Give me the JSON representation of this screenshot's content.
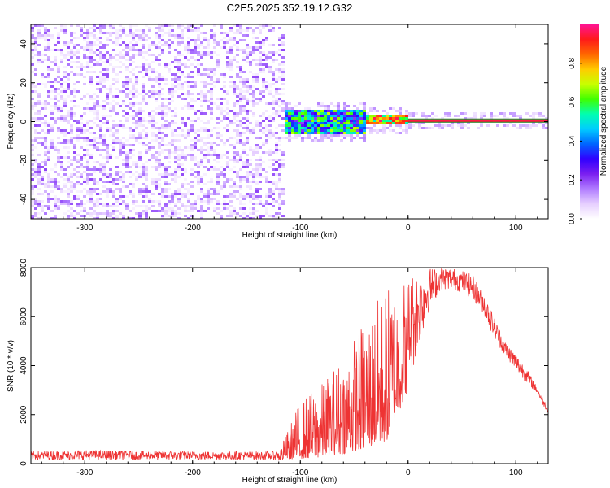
{
  "chart_data": [
    {
      "type": "heatmap",
      "title": "C2E5.2025.352.19.12.G32",
      "xlabel": "Height of straight line (km)",
      "ylabel": "Frequency (Hz)",
      "xlim": [
        -350,
        130
      ],
      "ylim": [
        -50,
        50
      ],
      "x_ticks": [
        "-300",
        "-200",
        "-100",
        "0",
        "100"
      ],
      "y_ticks": [
        "-40",
        "-20",
        "0",
        "20",
        "40"
      ],
      "colorbar": {
        "label": "Normalized spectral amplitude",
        "range": [
          0,
          1
        ],
        "ticks": [
          "0.0",
          "0.2",
          "0.4",
          "0.6",
          "0.8"
        ],
        "colormap": [
          "#ffffff",
          "#e6cfff",
          "#b07cff",
          "#7a1ef0",
          "#3000ff",
          "#0066ff",
          "#00ccff",
          "#00ffb0",
          "#40ff00",
          "#c8ff00",
          "#ffcc00",
          "#ff6600",
          "#ff1a1a",
          "#ff1493"
        ]
      },
      "regions": [
        {
          "x_range": [
            -350,
            -115
          ],
          "freq_range": [
            -50,
            50
          ],
          "amplitude_range": [
            0.0,
            0.2
          ],
          "character": "broadband noise"
        },
        {
          "x_range": [
            -115,
            -40
          ],
          "freq_range": [
            -6,
            6
          ],
          "amplitude_range": [
            0.2,
            0.7
          ],
          "character": "signal emerging near 0 Hz"
        },
        {
          "x_range": [
            -40,
            0
          ],
          "freq_range": [
            -2,
            3
          ],
          "amplitude_range": [
            0.5,
            1.0
          ],
          "character": "narrow tone near 0 Hz"
        },
        {
          "x_range": [
            0,
            130
          ],
          "freq_range": [
            0,
            1
          ],
          "amplitude_range": [
            0.8,
            1.0
          ],
          "character": "steady tone at 0 Hz"
        }
      ]
    },
    {
      "type": "line",
      "xlabel": "Height of straight line (km)",
      "ylabel": "SNR (10 * v/v)",
      "xlim": [
        -350,
        130
      ],
      "ylim": [
        0,
        8000
      ],
      "x_ticks": [
        "-300",
        "-200",
        "-100",
        "0",
        "100"
      ],
      "y_ticks": [
        "0",
        "2000",
        "4000",
        "6000",
        "8000"
      ],
      "series": [
        {
          "color": "#ee3333",
          "envelope": {
            "x": [
              -350,
              -300,
              -200,
              -120,
              -100,
              -80,
              -60,
              -40,
              -20,
              0,
              10,
              20,
              30,
              40,
              50,
              60,
              70,
              80,
              90,
              100,
              110,
              120,
              125,
              130
            ],
            "min": [
              150,
              150,
              150,
              150,
              200,
              250,
              400,
              600,
              900,
              3000,
              4800,
              6300,
              7100,
              7100,
              7000,
              6700,
              6100,
              5100,
              4400,
              3800,
              3300,
              2850,
              2400,
              2050
            ],
            "max": [
              500,
              550,
              500,
              500,
              2600,
              3300,
              4500,
              6000,
              7300,
              7800,
              7900,
              8000,
              8000,
              8000,
              7900,
              7700,
              7000,
              6000,
              5000,
              4500,
              3900,
              3100,
              2700,
              2300
            ]
          }
        }
      ]
    }
  ]
}
